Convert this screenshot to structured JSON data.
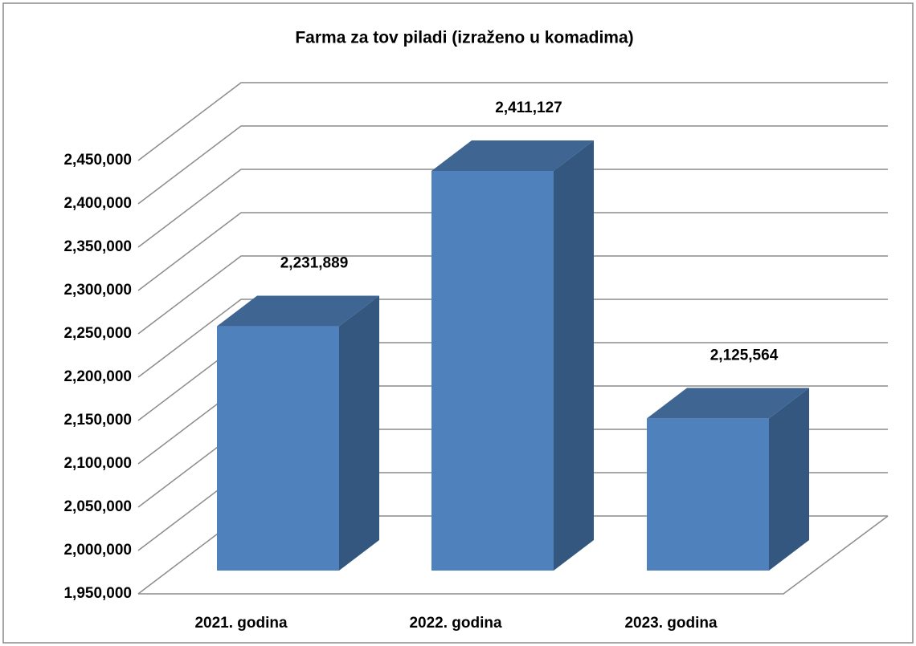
{
  "chart_data": {
    "type": "bar3d",
    "title": "Farma za tov piladi (izraženo u komadima)",
    "categories": [
      "2021. godina",
      "2022. godina",
      "2023. godina"
    ],
    "values": [
      2231889,
      2411127,
      2125564
    ],
    "value_labels": [
      "2,231,889",
      "2,411,127",
      "2,125,564"
    ],
    "color": "#4f81bd",
    "ylim": [
      1950000,
      2450000
    ],
    "yticks": [
      {
        "value": 1950000,
        "label": "1,950,000"
      },
      {
        "value": 2000000,
        "label": "2,000,000"
      },
      {
        "value": 2050000,
        "label": "2,050,000"
      },
      {
        "value": 2100000,
        "label": "2,100,000"
      },
      {
        "value": 2150000,
        "label": "2,150,000"
      },
      {
        "value": 2200000,
        "label": "2,200,000"
      },
      {
        "value": 2250000,
        "label": "2,250,000"
      },
      {
        "value": 2300000,
        "label": "2,300,000"
      },
      {
        "value": 2350000,
        "label": "2,350,000"
      },
      {
        "value": 2400000,
        "label": "2,400,000"
      },
      {
        "value": 2450000,
        "label": "2,450,000"
      }
    ],
    "grid": true
  }
}
